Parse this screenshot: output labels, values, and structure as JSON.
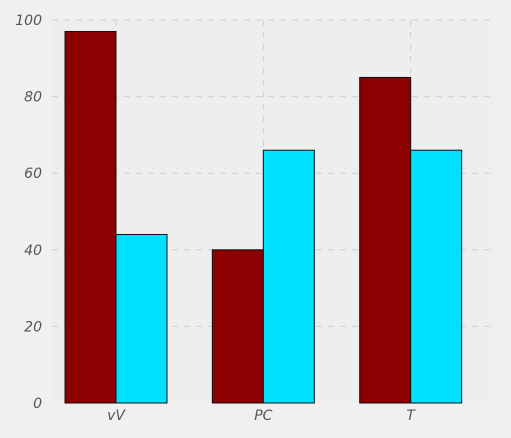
{
  "chart_data": {
    "type": "bar",
    "title": "",
    "xlabel": "",
    "ylabel": "",
    "categories": [
      "vV",
      "PC",
      "T"
    ],
    "series": [
      {
        "values": [
          97,
          40,
          85
        ],
        "color": "#8b0000"
      },
      {
        "values": [
          44,
          66,
          66
        ],
        "color": "#00e0ff"
      }
    ],
    "ylim": [
      0,
      100
    ],
    "yticks": [
      "0",
      "20",
      "40",
      "60",
      "80",
      "100"
    ],
    "grid": true,
    "background": "#eeeeee",
    "page_background": "#f0f0f0",
    "edge_color": "#111111"
  }
}
